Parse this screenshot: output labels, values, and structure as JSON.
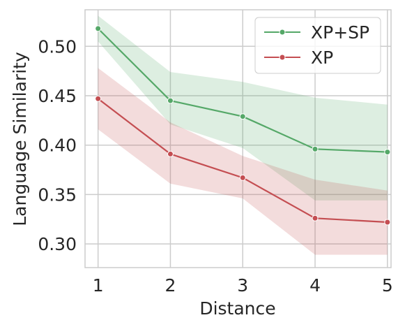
{
  "chart_data": {
    "type": "line",
    "title": "",
    "xlabel": "Distance",
    "ylabel": "Language Similarity",
    "x": [
      1,
      2,
      3,
      4,
      5
    ],
    "xticks": [
      "1",
      "2",
      "3",
      "4",
      "5"
    ],
    "yticks": [
      "0.30",
      "0.35",
      "0.40",
      "0.45",
      "0.50"
    ],
    "xlim": [
      0.82,
      5.05
    ],
    "ylim": [
      0.276,
      0.537
    ],
    "grid": true,
    "legend_position": "top-right",
    "series": [
      {
        "name": "XP+SP",
        "color": "#55a868",
        "values": [
          0.518,
          0.445,
          0.429,
          0.396,
          0.393
        ],
        "band_low": [
          0.505,
          0.421,
          0.397,
          0.344,
          0.344
        ],
        "band_high": [
          0.531,
          0.474,
          0.464,
          0.448,
          0.441
        ]
      },
      {
        "name": "XP",
        "color": "#c44e52",
        "values": [
          0.447,
          0.391,
          0.367,
          0.326,
          0.322
        ],
        "band_low": [
          0.416,
          0.361,
          0.346,
          0.289,
          0.289
        ],
        "band_high": [
          0.478,
          0.423,
          0.389,
          0.365,
          0.354
        ]
      }
    ]
  }
}
